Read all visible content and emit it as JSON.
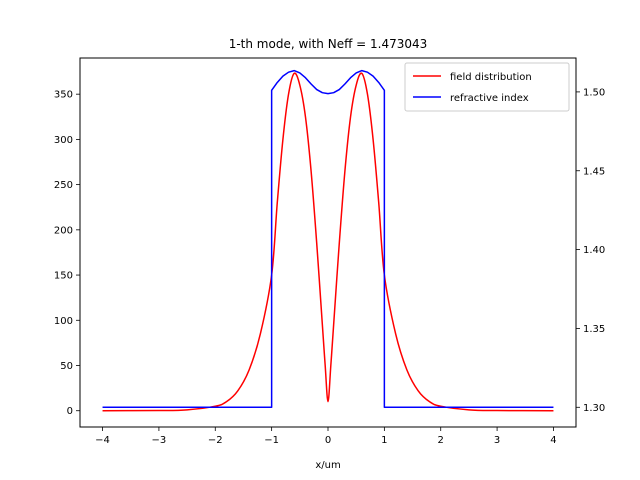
{
  "chart_data": {
    "type": "line",
    "title": "1-th mode, with Neff = 1.473043",
    "xlabel": "x/um",
    "ylabel": "",
    "y2label": "",
    "xlim": [
      -4.4,
      4.4
    ],
    "ylim": [
      -18,
      390
    ],
    "y2lim": [
      1.2875,
      1.5215
    ],
    "xticks": [
      -4,
      -3,
      -2,
      -1,
      0,
      1,
      2,
      3,
      4
    ],
    "xtick_labels": [
      "−4",
      "−3",
      "−2",
      "−1",
      "0",
      "1",
      "2",
      "3",
      "4"
    ],
    "yticks": [
      0,
      50,
      100,
      150,
      200,
      250,
      300,
      350
    ],
    "ytick_labels": [
      "0",
      "50",
      "100",
      "150",
      "200",
      "250",
      "300",
      "350"
    ],
    "y2ticks": [
      1.3,
      1.35,
      1.4,
      1.45,
      1.5
    ],
    "y2tick_labels": [
      "1.30",
      "1.35",
      "1.40",
      "1.45",
      "1.50"
    ],
    "grid": false,
    "legend": "top-right",
    "series": [
      {
        "name": "field distribution",
        "color": "#ff0000",
        "axis": "left",
        "x": [
          -4.0,
          -3.0,
          -2.5,
          -2.0,
          -1.8,
          -1.6,
          -1.4,
          -1.2,
          -1.0,
          -0.9,
          -0.8,
          -0.7,
          -0.6,
          -0.5,
          -0.4,
          -0.3,
          -0.2,
          -0.1,
          -0.05,
          0.0,
          0.05,
          0.1,
          0.2,
          0.3,
          0.4,
          0.5,
          0.6,
          0.7,
          0.8,
          0.9,
          1.0,
          1.2,
          1.4,
          1.6,
          1.8,
          2.0,
          2.5,
          3.0,
          4.0
        ],
        "y": [
          0,
          0.2,
          1,
          5,
          10,
          22,
          45,
          85,
          150,
          230,
          300,
          350,
          373,
          360,
          325,
          265,
          185,
          95,
          50,
          10,
          50,
          95,
          185,
          265,
          325,
          360,
          373,
          350,
          300,
          230,
          150,
          85,
          45,
          22,
          10,
          5,
          1,
          0.2,
          0
        ]
      },
      {
        "name": "refractive index",
        "color": "#0000ff",
        "axis": "right",
        "x": [
          -4.0,
          -1.0,
          -1.0,
          -0.9,
          -0.8,
          -0.7,
          -0.6,
          -0.5,
          -0.4,
          -0.3,
          -0.2,
          -0.1,
          0.0,
          0.1,
          0.2,
          0.3,
          0.4,
          0.5,
          0.6,
          0.7,
          0.8,
          0.9,
          1.0,
          1.0,
          4.0
        ],
        "y": [
          1.3,
          1.3,
          1.501,
          1.506,
          1.51,
          1.5125,
          1.5135,
          1.512,
          1.509,
          1.505,
          1.5015,
          1.4995,
          1.4989,
          1.4995,
          1.5015,
          1.505,
          1.509,
          1.512,
          1.5135,
          1.5125,
          1.51,
          1.506,
          1.501,
          1.3,
          1.3
        ]
      }
    ]
  }
}
